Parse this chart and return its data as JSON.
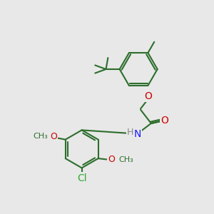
{
  "bg_color": "#e8e8e8",
  "bond_color": "#2d6e2d",
  "bond_width": 1.5,
  "atom_colors": {
    "O": "#cc0000",
    "N": "#1a1aff",
    "Cl": "#33aa33",
    "C": "#2d6e2d",
    "H": "#888888"
  },
  "font_size": 9
}
